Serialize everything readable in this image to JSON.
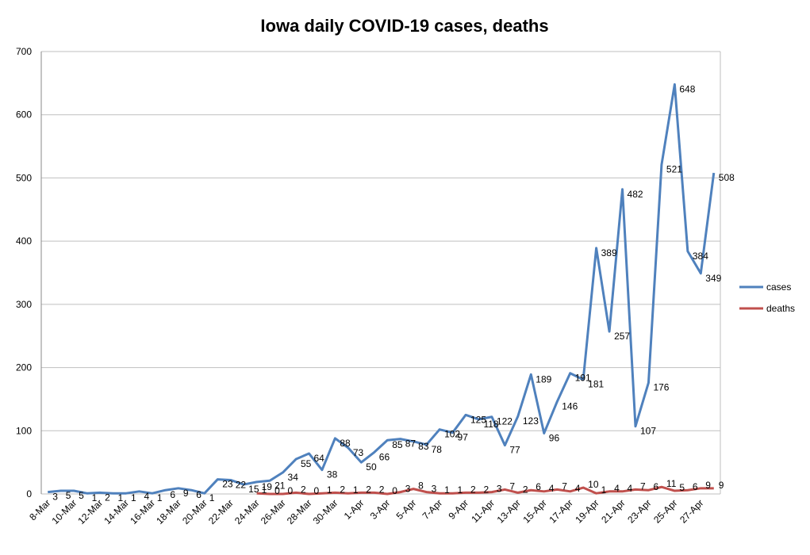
{
  "chart_data": {
    "type": "line",
    "title": "Iowa daily COVID-19 cases, deaths",
    "categories": [
      "8-Mar",
      null,
      "10-Mar",
      null,
      "12-Mar",
      null,
      "14-Mar",
      null,
      "16-Mar",
      null,
      "18-Mar",
      null,
      "20-Mar",
      null,
      "22-Mar",
      null,
      "24-Mar",
      null,
      "26-Mar",
      null,
      "28-Mar",
      null,
      "30-Mar",
      null,
      "1-Apr",
      null,
      "3-Apr",
      null,
      "5-Apr",
      null,
      "7-Apr",
      null,
      "9-Apr",
      null,
      "11-Apr",
      null,
      "13-Apr",
      null,
      "15-Apr",
      null,
      "17-Apr",
      null,
      "19-Apr",
      null,
      "21-Apr",
      null,
      "23-Apr",
      null,
      "25-Apr",
      null,
      "27-Apr",
      null
    ],
    "series": [
      {
        "name": "cases",
        "color": "#4f81bd",
        "values": [
          3,
          5,
          5,
          1,
          2,
          1,
          1,
          4,
          1,
          6,
          9,
          6,
          1,
          23,
          22,
          15,
          19,
          21,
          34,
          55,
          64,
          38,
          88,
          73,
          50,
          66,
          85,
          87,
          83,
          78,
          102,
          97,
          125,
          118,
          122,
          77,
          123,
          189,
          96,
          146,
          191,
          181,
          389,
          257,
          482,
          107,
          176,
          521,
          648,
          384,
          349,
          508
        ]
      },
      {
        "name": "deaths",
        "color": "#c0504d",
        "values": [
          null,
          null,
          null,
          null,
          null,
          null,
          null,
          null,
          null,
          null,
          null,
          null,
          null,
          null,
          null,
          null,
          1,
          0,
          0,
          2,
          0,
          1,
          2,
          1,
          2,
          2,
          0,
          3,
          8,
          3,
          1,
          1,
          2,
          2,
          3,
          7,
          2,
          6,
          4,
          7,
          4,
          10,
          1,
          4,
          4,
          7,
          6,
          11,
          5,
          6,
          9,
          9
        ]
      }
    ],
    "ylim": [
      0,
      700
    ],
    "yticks": [
      0,
      100,
      200,
      300,
      400,
      500,
      600,
      700
    ],
    "grid": true,
    "legend": "right"
  }
}
